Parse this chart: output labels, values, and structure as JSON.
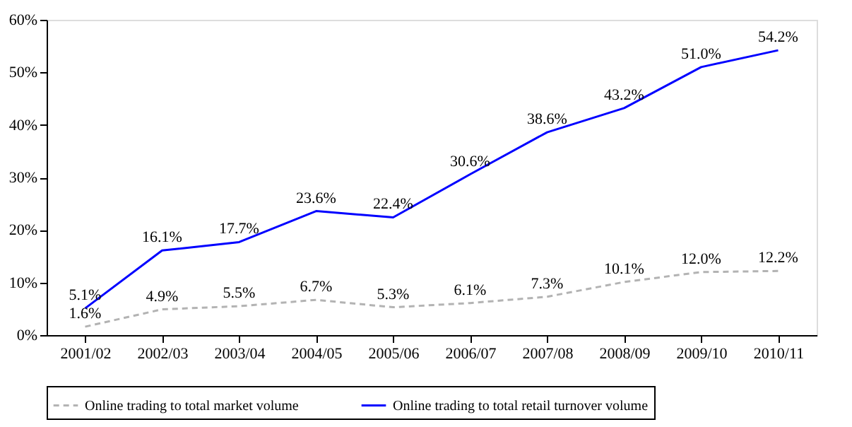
{
  "chart_data": {
    "type": "line",
    "categories": [
      "2001/02",
      "2002/03",
      "2003/04",
      "2004/05",
      "2005/06",
      "2006/07",
      "2007/08",
      "2008/09",
      "2009/10",
      "2010/11"
    ],
    "ylim": [
      0,
      60
    ],
    "yticks": [
      {
        "value": 0,
        "label": "0%"
      },
      {
        "value": 10,
        "label": "10%"
      },
      {
        "value": 20,
        "label": "20%"
      },
      {
        "value": 30,
        "label": "30%"
      },
      {
        "value": 40,
        "label": "40%"
      },
      {
        "value": 50,
        "label": "50%"
      },
      {
        "value": 60,
        "label": "60%"
      }
    ],
    "grid": false,
    "legend": "bottom",
    "marker": "none",
    "series": [
      {
        "name": "Online trading to total market volume",
        "color": "#b3b3b3",
        "line_style": "dashed",
        "values": [
          1.6,
          4.9,
          5.5,
          6.7,
          5.3,
          6.1,
          7.3,
          10.1,
          12.0,
          12.2
        ],
        "value_labels": [
          "1.6%",
          "4.9%",
          "5.5%",
          "6.7%",
          "5.3%",
          "6.1%",
          "7.3%",
          "10.1%",
          "12.0%",
          "12.2%"
        ]
      },
      {
        "name": "Online trading to total retail turnover volume",
        "color": "#0000ff",
        "line_style": "solid",
        "values": [
          5.1,
          16.1,
          17.7,
          23.6,
          22.4,
          30.6,
          38.6,
          43.2,
          51.0,
          54.2
        ],
        "value_labels": [
          "5.1%",
          "16.1%",
          "17.7%",
          "23.6%",
          "22.4%",
          "30.6%",
          "38.6%",
          "43.2%",
          "51.0%",
          "54.2%"
        ]
      }
    ]
  }
}
